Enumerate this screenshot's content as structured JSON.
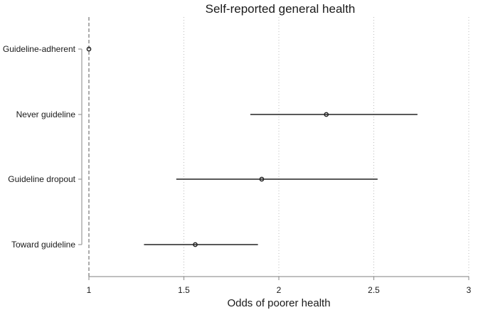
{
  "chart_data": {
    "type": "scatter",
    "subtype": "forest-plot",
    "title": "Self-reported general health",
    "xlabel": "Odds of poorer health",
    "ylabel": "",
    "xlim": [
      1,
      3
    ],
    "xticks": [
      1,
      1.5,
      2,
      2.5,
      3
    ],
    "xtick_labels": [
      "1",
      "1.5",
      "2",
      "2.5",
      "3"
    ],
    "reference_line": 1,
    "grid": "vertical dotted",
    "categories": [
      "Guideline-adherent",
      "Never guideline",
      "Guideline dropout",
      "Toward guideline"
    ],
    "estimates": [
      1,
      2.25,
      1.91,
      1.56
    ],
    "ci_lower": [
      1,
      1.85,
      1.46,
      1.29
    ],
    "ci_upper": [
      1,
      2.73,
      2.52,
      1.89
    ],
    "colors": {
      "point": "#222222",
      "ci": "#222222",
      "reference": "#888888",
      "grid": "#bbbbbb",
      "axis": "#999999"
    }
  }
}
